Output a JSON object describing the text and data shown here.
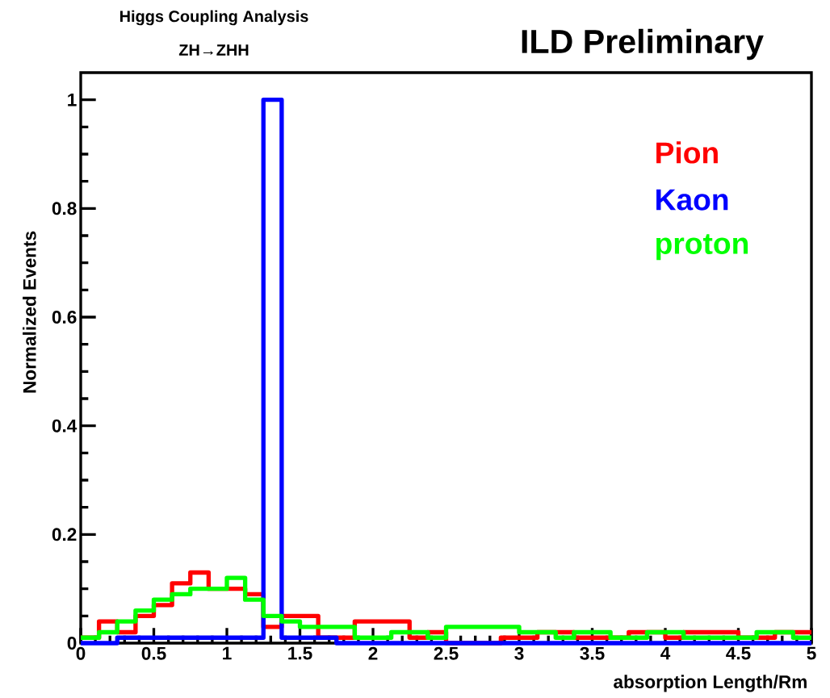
{
  "chart_data": {
    "type": "histogram",
    "title": "ILD Preliminary",
    "annotations": [
      "Higgs Coupling Analysis",
      "ZH→ZHH"
    ],
    "xlabel": "absorption Length/Rm",
    "ylabel": "Normalized Events",
    "bins": [
      0,
      0.125,
      0.25,
      0.375,
      0.5,
      0.625,
      0.75,
      0.875,
      1,
      1.125,
      1.25,
      1.375,
      1.5,
      1.625,
      1.75,
      1.875,
      2,
      2.125,
      2.25,
      2.375,
      2.5,
      2.625,
      2.75,
      2.875,
      3,
      3.125,
      3.25,
      3.375,
      3.5,
      3.625,
      3.75,
      3.875,
      4,
      4.125,
      4.25,
      4.375,
      4.5,
      4.625,
      4.75,
      4.875,
      5
    ],
    "series": [
      {
        "name": "Pion",
        "color": "#ff0000",
        "values": [
          0.01,
          0.04,
          0.02,
          0.05,
          0.07,
          0.11,
          0.13,
          0.1,
          0.1,
          0.09,
          0.03,
          0.05,
          0.05,
          0.01,
          0.01,
          0.04,
          0.04,
          0.04,
          0.01,
          0.02,
          0,
          0,
          0,
          0.01,
          0.01,
          0.02,
          0.02,
          0.01,
          0.01,
          0.01,
          0.02,
          0.02,
          0.01,
          0.02,
          0.02,
          0.02,
          0.01,
          0.01,
          0.02,
          0.02
        ]
      },
      {
        "name": "Kaon",
        "color": "#0000ff",
        "values": [
          0,
          0,
          0.01,
          0.01,
          0.01,
          0.01,
          0.01,
          0.01,
          0.01,
          0.01,
          1,
          0.01,
          0.01,
          0.01,
          0,
          0,
          0,
          0,
          0,
          0,
          0,
          0,
          0,
          0,
          0,
          0,
          0,
          0,
          0,
          0,
          0,
          0,
          0,
          0,
          0,
          0,
          0,
          0,
          0,
          0
        ]
      },
      {
        "name": "proton",
        "color": "#00ff00",
        "values": [
          0.01,
          0.02,
          0.04,
          0.06,
          0.08,
          0.09,
          0.1,
          0.1,
          0.12,
          0.08,
          0.05,
          0.04,
          0.03,
          0.03,
          0.03,
          0.01,
          0.01,
          0.02,
          0.02,
          0.01,
          0.03,
          0.03,
          0.03,
          0.03,
          0.02,
          0.02,
          0.01,
          0.02,
          0.02,
          0.01,
          0.01,
          0.02,
          0.02,
          0.01,
          0.01,
          0.01,
          0.01,
          0.02,
          0.02,
          0.01
        ]
      }
    ],
    "xlim": [
      0,
      5
    ],
    "ylim": [
      0,
      1.05
    ],
    "xticks": [
      0,
      0.5,
      1,
      1.5,
      2,
      2.5,
      3,
      3.5,
      4,
      4.5,
      5
    ],
    "yticks": [
      0,
      0.2,
      0.4,
      0.6,
      0.8,
      1
    ],
    "legend": "top right"
  }
}
